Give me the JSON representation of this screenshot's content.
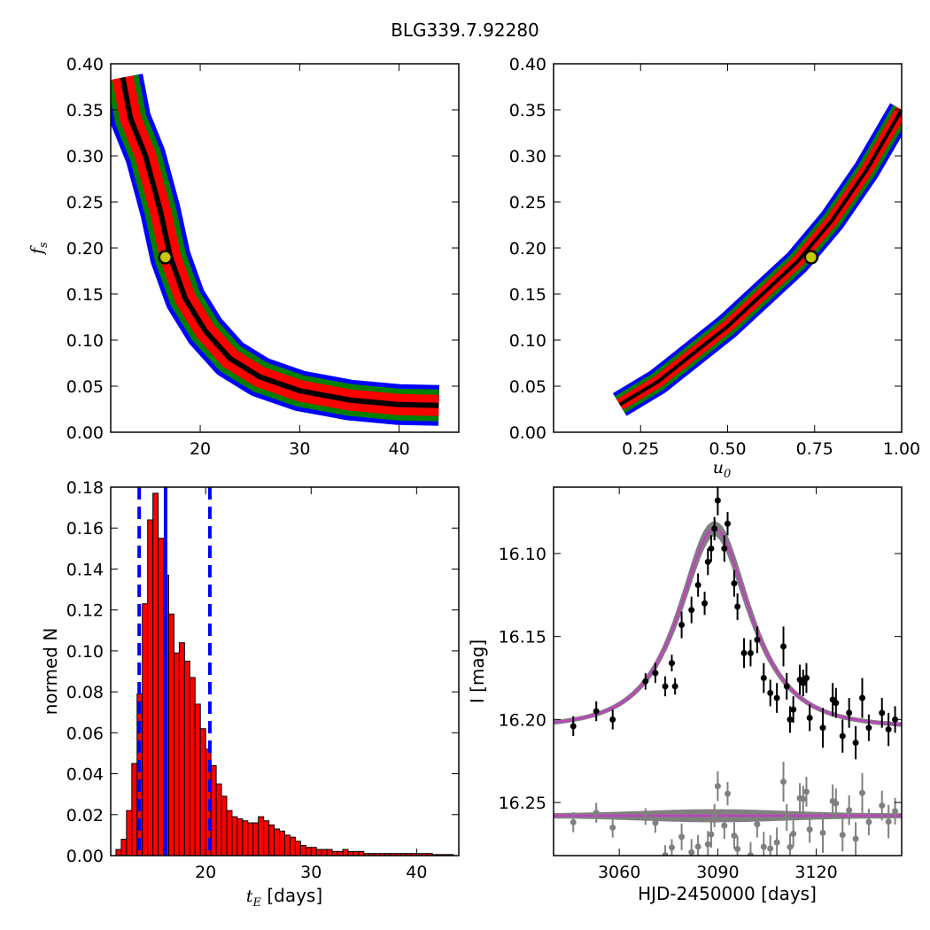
{
  "title": "BLG339.7.92280",
  "colors": {
    "blue": "#0000ff",
    "green": "#008000",
    "red": "#ff0000",
    "black": "#000000",
    "marker_face": "#c8c800",
    "gray": "#808080",
    "model": "#bf40bf"
  },
  "chart_data": [
    {
      "panel": "fs_vs_tE",
      "type": "heatmap",
      "title": "",
      "xlabel": "",
      "ylabel": "f_s",
      "xlim": [
        11,
        46
      ],
      "ylim": [
        0.0,
        0.4
      ],
      "xticks": [
        20,
        30,
        40
      ],
      "yticks": [
        0.0,
        0.05,
        0.1,
        0.15,
        0.2,
        0.25,
        0.3,
        0.35,
        0.4
      ],
      "ytick_labels": [
        "0.00",
        "0.05",
        "0.10",
        "0.15",
        "0.20",
        "0.25",
        "0.30",
        "0.35",
        "0.40"
      ],
      "ridge": [
        [
          12.2,
          0.385
        ],
        [
          13.0,
          0.34
        ],
        [
          14.5,
          0.3
        ],
        [
          16.0,
          0.24
        ],
        [
          17.0,
          0.19
        ],
        [
          18.5,
          0.145
        ],
        [
          20.5,
          0.11
        ],
        [
          23.0,
          0.08
        ],
        [
          26.0,
          0.06
        ],
        [
          30.0,
          0.045
        ],
        [
          35.0,
          0.035
        ],
        [
          40.0,
          0.03
        ],
        [
          44.0,
          0.029
        ]
      ],
      "contour_levels": [
        "blue",
        "green",
        "red",
        "black"
      ],
      "best_fit": {
        "x": 16.5,
        "y": 0.19
      }
    },
    {
      "panel": "fs_vs_u0",
      "type": "heatmap",
      "title": "",
      "xlabel": "u_0",
      "ylabel": "",
      "xlim": [
        0.0,
        1.0
      ],
      "ylim": [
        0.0,
        0.4
      ],
      "xticks": [
        0.25,
        0.5,
        0.75,
        1.0
      ],
      "xtick_labels": [
        "0.25",
        "0.50",
        "0.75",
        "1.00"
      ],
      "yticks": [
        0.0,
        0.05,
        0.1,
        0.15,
        0.2,
        0.25,
        0.3,
        0.35,
        0.4
      ],
      "ytick_labels": [
        "0.00",
        "0.05",
        "0.10",
        "0.15",
        "0.20",
        "0.25",
        "0.30",
        "0.35",
        "0.40"
      ],
      "ridge": [
        [
          0.19,
          0.03
        ],
        [
          0.3,
          0.055
        ],
        [
          0.4,
          0.085
        ],
        [
          0.5,
          0.115
        ],
        [
          0.6,
          0.15
        ],
        [
          0.7,
          0.185
        ],
        [
          0.8,
          0.23
        ],
        [
          0.9,
          0.285
        ],
        [
          1.0,
          0.35
        ]
      ],
      "contour_levels": [
        "blue",
        "green",
        "red",
        "black"
      ],
      "best_fit": {
        "x": 0.74,
        "y": 0.19
      }
    },
    {
      "panel": "tE_histogram",
      "type": "bar",
      "title": "",
      "xlabel": "t_E [days]",
      "ylabel": "normed N",
      "xlim": [
        11,
        44
      ],
      "ylim": [
        0.0,
        0.18
      ],
      "xticks": [
        20,
        30,
        40
      ],
      "yticks": [
        0.0,
        0.02,
        0.04,
        0.06,
        0.08,
        0.1,
        0.12,
        0.14,
        0.16,
        0.18
      ],
      "ytick_labels": [
        "0.00",
        "0.02",
        "0.04",
        "0.06",
        "0.08",
        "0.10",
        "0.12",
        "0.14",
        "0.16",
        "0.18"
      ],
      "bin_start": 11.5,
      "bin_width": 0.5,
      "values": [
        0.003,
        0.008,
        0.022,
        0.045,
        0.079,
        0.123,
        0.164,
        0.177,
        0.155,
        0.137,
        0.118,
        0.099,
        0.104,
        0.095,
        0.087,
        0.074,
        0.062,
        0.052,
        0.044,
        0.035,
        0.029,
        0.022,
        0.019,
        0.018,
        0.017,
        0.016,
        0.016,
        0.019,
        0.017,
        0.015,
        0.013,
        0.012,
        0.01,
        0.009,
        0.007,
        0.005,
        0.004,
        0.004,
        0.003,
        0.003,
        0.003,
        0.002,
        0.002,
        0.003,
        0.002,
        0.002,
        0.002,
        0.001,
        0.001,
        0.001,
        0.001,
        0.001,
        0.001,
        0.001,
        0.001,
        0.001,
        0.001,
        0.001,
        0.001,
        0.001,
        0.0005,
        0.0005,
        0.0005,
        0.0005
      ],
      "median": 16.2,
      "interval": [
        13.7,
        20.4
      ]
    },
    {
      "panel": "light_curve",
      "type": "scatter",
      "title": "",
      "xlabel": "HJD-2450000 [days]",
      "ylabel": "I [mag]",
      "xlim": [
        3040,
        3146
      ],
      "ylim": [
        16.282,
        16.06
      ],
      "xticks": [
        3060,
        3090,
        3120
      ],
      "yticks": [
        16.1,
        16.15,
        16.2,
        16.25
      ],
      "ytick_labels": [
        "16.10",
        "16.15",
        "16.20",
        "16.25"
      ],
      "model": {
        "t0": 3089.0,
        "tE": 16.5,
        "u0": 0.74,
        "fs": 0.19,
        "baseline": 16.205
      },
      "residual_offset": 16.258,
      "data": {
        "t": [
          3046,
          3053,
          3058,
          3068,
          3071,
          3074,
          3076,
          3077,
          3079,
          3082,
          3084,
          3086,
          3087,
          3088,
          3089,
          3090,
          3092,
          3093,
          3095,
          3096,
          3098,
          3100,
          3102,
          3104,
          3106,
          3108,
          3110,
          3111,
          3112,
          3113,
          3115,
          3116,
          3117,
          3118,
          3122,
          3125,
          3126,
          3128,
          3130,
          3132,
          3134,
          3136,
          3140,
          3142,
          3144
        ],
        "mag": [
          16.204,
          16.195,
          16.2,
          16.177,
          16.172,
          16.18,
          16.166,
          16.18,
          16.143,
          16.134,
          16.119,
          16.13,
          16.105,
          16.097,
          16.085,
          16.068,
          16.097,
          16.082,
          16.118,
          16.132,
          16.16,
          16.16,
          16.152,
          16.175,
          16.184,
          16.187,
          16.156,
          16.18,
          16.2,
          16.194,
          16.176,
          16.178,
          16.175,
          16.199,
          16.205,
          16.188,
          16.19,
          16.21,
          16.196,
          16.214,
          16.187,
          16.205,
          16.196,
          16.206,
          16.2
        ],
        "err": [
          0.006,
          0.006,
          0.006,
          0.005,
          0.006,
          0.006,
          0.005,
          0.005,
          0.008,
          0.008,
          0.007,
          0.007,
          0.008,
          0.008,
          0.007,
          0.009,
          0.008,
          0.007,
          0.008,
          0.008,
          0.009,
          0.008,
          0.008,
          0.009,
          0.008,
          0.009,
          0.012,
          0.008,
          0.008,
          0.008,
          0.009,
          0.008,
          0.009,
          0.008,
          0.012,
          0.01,
          0.009,
          0.01,
          0.009,
          0.01,
          0.012,
          0.008,
          0.009,
          0.01,
          0.008
        ]
      }
    }
  ]
}
